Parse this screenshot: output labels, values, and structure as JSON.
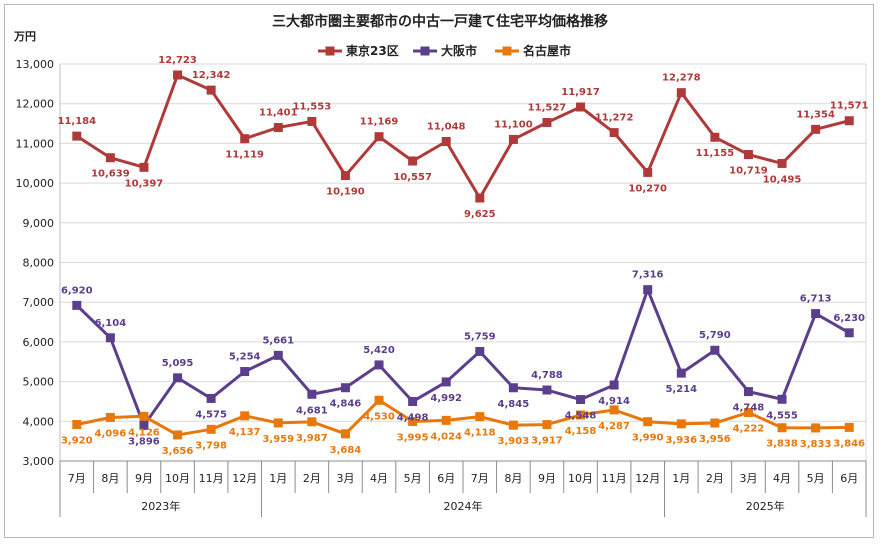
{
  "chart_data": {
    "type": "line",
    "title": "三大都市圏主要都市の中古一戸建て住宅平均価格推移",
    "ylabel": "万円",
    "ylim": [
      3000,
      13000
    ],
    "yticks": [
      "3,000",
      "4,000",
      "5,000",
      "6,000",
      "7,000",
      "8,000",
      "9,000",
      "10,000",
      "11,000",
      "12,000",
      "13,000"
    ],
    "categories": [
      "7月",
      "8月",
      "9月",
      "10月",
      "11月",
      "12月",
      "1月",
      "2月",
      "3月",
      "4月",
      "5月",
      "6月",
      "7月",
      "8月",
      "9月",
      "10月",
      "11月",
      "12月",
      "1月",
      "2月",
      "3月",
      "4月",
      "5月",
      "6月"
    ],
    "years": [
      {
        "label": "2023年",
        "start": 0,
        "end": 5
      },
      {
        "label": "2024年",
        "start": 6,
        "end": 17
      },
      {
        "label": "2025年",
        "start": 18,
        "end": 23
      }
    ],
    "series": [
      {
        "name": "東京23区",
        "color": "#b03a3a",
        "marker": "square",
        "values": [
          11184,
          10639,
          10397,
          12723,
          12342,
          11119,
          11401,
          11553,
          10190,
          11169,
          10557,
          11048,
          9625,
          11100,
          11527,
          11917,
          11272,
          10270,
          12278,
          11155,
          10719,
          10495,
          11354,
          11571
        ],
        "labels": [
          "11,184",
          "10,639",
          "10,397",
          "12,723",
          "12,342",
          "11,119",
          "11,401",
          "11,553",
          "10,190",
          "11,169",
          "10,557",
          "11,048",
          "9,625",
          "11,100",
          "11,527",
          "11,917",
          "11,272",
          "10,270",
          "12,278",
          "11,155",
          "10,719",
          "10,495",
          "11,354",
          "11,571"
        ]
      },
      {
        "name": "大阪市",
        "color": "#5b3f8c",
        "marker": "square",
        "values": [
          6920,
          6104,
          3896,
          5095,
          4575,
          5254,
          5661,
          4681,
          4846,
          5420,
          4498,
          4992,
          5759,
          4845,
          4788,
          4548,
          4914,
          7316,
          5214,
          5790,
          4748,
          4555,
          6713,
          6230
        ],
        "labels": [
          "6,920",
          "6,104",
          "3,896",
          "5,095",
          "4,575",
          "5,254",
          "5,661",
          "4,681",
          "4,846",
          "5,420",
          "4,498",
          "4,992",
          "5,759",
          "4,845",
          "4,788",
          "4,548",
          "4,914",
          "7,316",
          "5,214",
          "5,790",
          "4,748",
          "4,555",
          "6,713",
          "6,230"
        ]
      },
      {
        "name": "名古屋市",
        "color": "#e8780a",
        "marker": "square",
        "values": [
          3920,
          4096,
          4126,
          3656,
          3798,
          4137,
          3959,
          3987,
          3684,
          4530,
          3995,
          4024,
          4118,
          3903,
          3917,
          4158,
          4287,
          3990,
          3936,
          3956,
          4222,
          3838,
          3833,
          3846
        ],
        "labels": [
          "3,920",
          "4,096",
          "4,126",
          "3,656",
          "3,798",
          "4,137",
          "3,959",
          "3,987",
          "3,684",
          "4,530",
          "3,995",
          "4,024",
          "4,118",
          "3,903",
          "3,917",
          "4,158",
          "4,287",
          "3,990",
          "3,936",
          "3,956",
          "4,222",
          "3,838",
          "3,833",
          "3,846"
        ]
      }
    ],
    "grid": true,
    "legend": "top-center"
  }
}
